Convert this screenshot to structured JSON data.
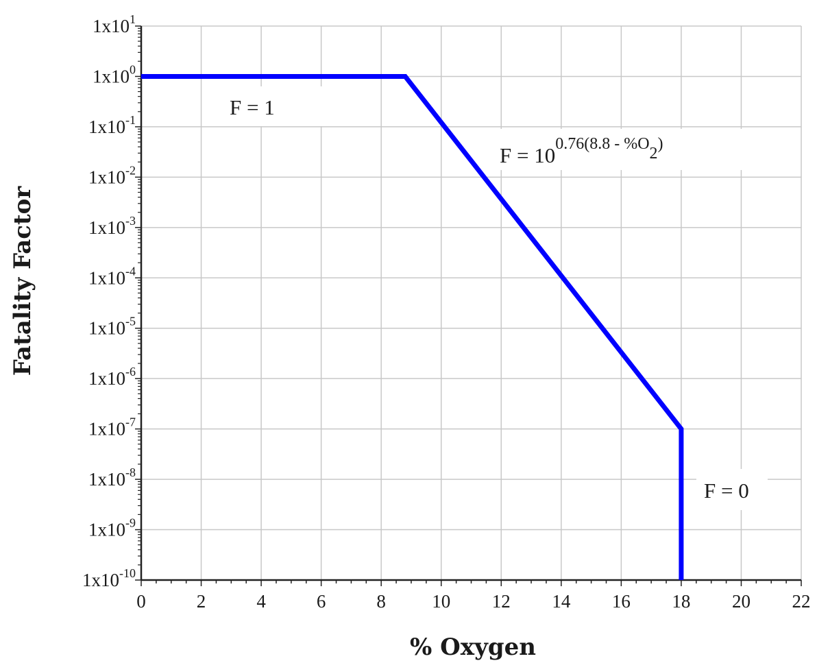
{
  "chart_data": {
    "type": "line",
    "title": "",
    "xlabel": "% Oxygen",
    "ylabel": "Fatality Factor",
    "x_scale": "linear",
    "y_scale": "log",
    "xlim": [
      0,
      22
    ],
    "ylim": [
      1e-10,
      10
    ],
    "x_ticks": [
      0,
      2,
      4,
      6,
      8,
      10,
      12,
      14,
      16,
      18,
      20,
      22
    ],
    "x_tick_labels": [
      "0",
      "2",
      "4",
      "6",
      "8",
      "10",
      "12",
      "14",
      "16",
      "18",
      "20",
      "22"
    ],
    "y_ticks": [
      {
        "value": 10,
        "base": "1x10",
        "exp": "1"
      },
      {
        "value": 1,
        "base": "1x10",
        "exp": "0"
      },
      {
        "value": 0.1,
        "base": "1x10",
        "exp": "-1"
      },
      {
        "value": 0.01,
        "base": "1x10",
        "exp": "-2"
      },
      {
        "value": 0.001,
        "base": "1x10",
        "exp": "-3"
      },
      {
        "value": 0.0001,
        "base": "1x10",
        "exp": "-4"
      },
      {
        "value": 1e-05,
        "base": "1x10",
        "exp": "-5"
      },
      {
        "value": 1e-06,
        "base": "1x10",
        "exp": "-6"
      },
      {
        "value": 1e-07,
        "base": "1x10",
        "exp": "-7"
      },
      {
        "value": 1e-08,
        "base": "1x10",
        "exp": "-8"
      },
      {
        "value": 1e-09,
        "base": "1x10",
        "exp": "-9"
      },
      {
        "value": 1e-10,
        "base": "1x10",
        "exp": "-10"
      }
    ],
    "grid": true,
    "series": [
      {
        "color": "#0000ff",
        "points": [
          {
            "x": 0,
            "y": 1
          },
          {
            "x": 8.8,
            "y": 1
          },
          {
            "x": 18,
            "y": 1e-07
          },
          {
            "x": 18,
            "y": 1e-10
          }
        ]
      }
    ],
    "annotations": [
      {
        "id": "f1",
        "text": "F = 1",
        "x": 4.8,
        "y": 0.3
      },
      {
        "id": "f2",
        "base": "F = 10",
        "sup": "0.76(8.8 - %O",
        "sub": "2",
        "tail": ")",
        "x": 12,
        "y": 0.025
      },
      {
        "id": "f0",
        "text": "F = 0",
        "x": 20.2,
        "y": 1e-08
      }
    ]
  }
}
